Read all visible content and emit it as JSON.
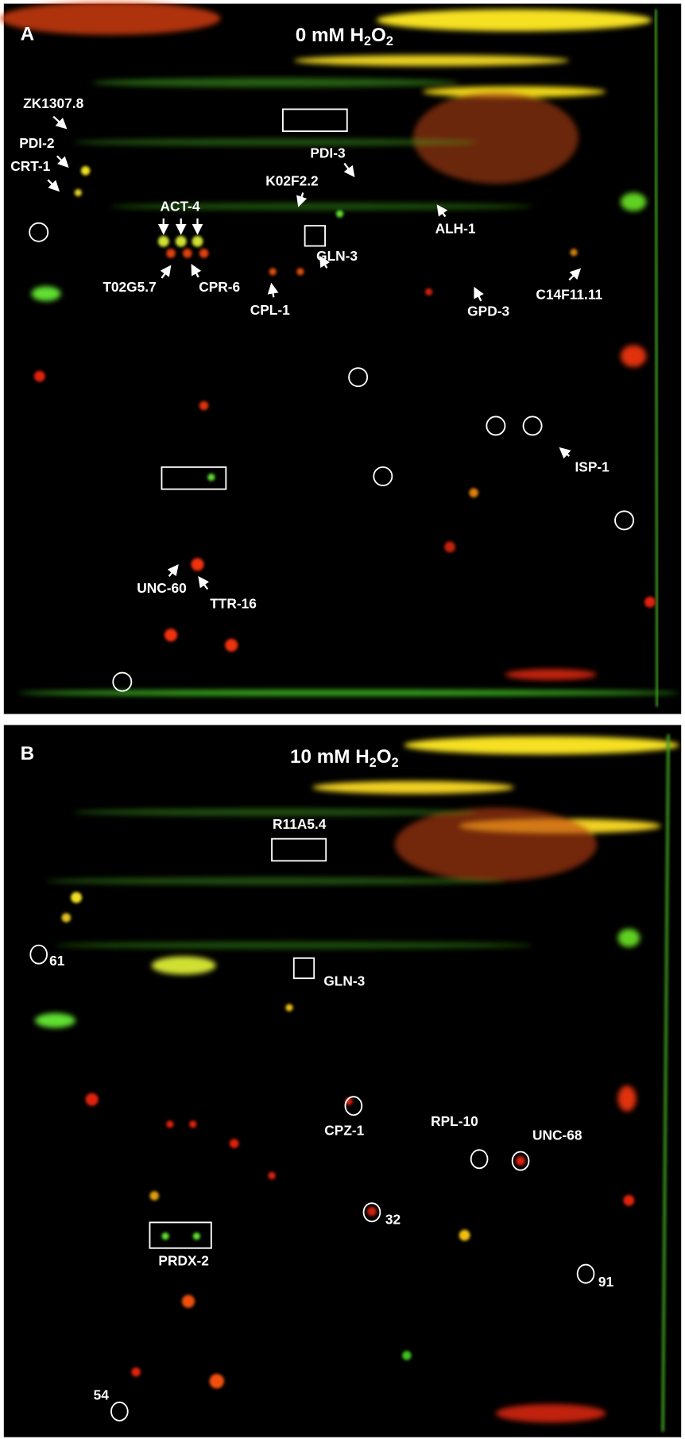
{
  "panel_a": {
    "letter": "A",
    "title": {
      "main": "0 mM H",
      "sub1": "2",
      "mid": "O",
      "sub2": "2"
    },
    "labels": [
      "ZK1307.8",
      "PDI-2",
      "CRT-1",
      "PDI-3",
      "K02F2.2",
      "ACT-4",
      "ALH-1",
      "T02G5.7",
      "CPR-6",
      "GLN-3",
      "CPL-1",
      "GPD-3",
      "C14F11.11",
      "ISP-1",
      "UNC-60",
      "TTR-16"
    ]
  },
  "panel_b": {
    "letter": "B",
    "title": {
      "main": "10 mM H",
      "sub1": "2",
      "mid": "O",
      "sub2": "2"
    },
    "labels": [
      "R11A5.4",
      "61",
      "GLN-3",
      "CPZ-1",
      "RPL-10",
      "UNC-68",
      "32",
      "PRDX-2",
      "91",
      "54"
    ]
  }
}
